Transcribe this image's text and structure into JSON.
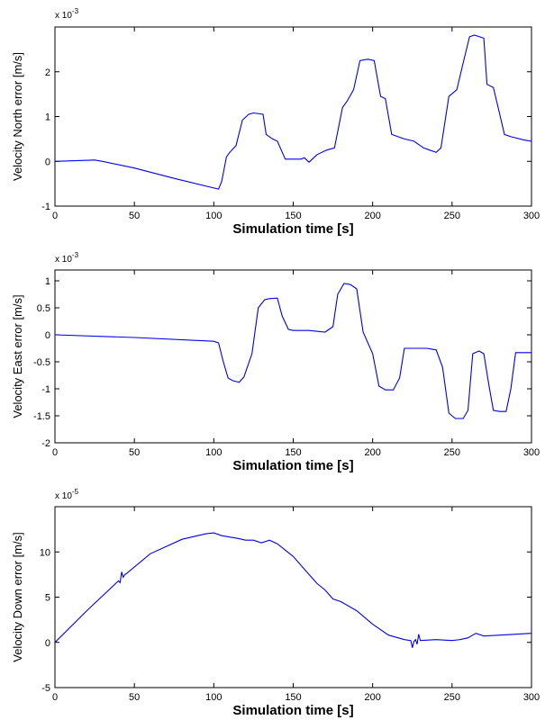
{
  "chart_data": [
    {
      "type": "line",
      "title": "",
      "xlabel": "Simulation time [s]",
      "ylabel": "Velocity North error [m/s]",
      "exponent": {
        "base": "x 10",
        "power": "-3"
      },
      "xlim": [
        0,
        300
      ],
      "ylim": [
        -1,
        3
      ],
      "xticks": [
        0,
        50,
        100,
        150,
        200,
        250,
        300
      ],
      "yticks": [
        -1,
        0,
        1,
        2
      ],
      "grid": false,
      "series": [
        {
          "color": "#0000ee",
          "x": [
            0,
            25,
            30,
            50,
            75,
            103,
            105,
            108,
            110,
            114,
            118,
            122,
            125,
            131,
            133,
            137,
            140,
            145,
            149,
            155,
            157,
            160,
            165,
            171,
            176,
            181,
            184,
            188,
            192,
            197,
            201,
            205,
            208,
            212,
            216,
            220,
            226,
            232,
            236,
            240,
            243,
            248,
            253,
            257,
            261,
            264,
            270,
            272,
            276,
            279,
            283,
            287,
            295,
            300
          ],
          "y": [
            0,
            0.03,
            0,
            -0.15,
            -0.38,
            -0.62,
            -0.45,
            0.1,
            0.2,
            0.35,
            0.92,
            1.05,
            1.08,
            1.05,
            0.6,
            0.5,
            0.45,
            0.05,
            0.05,
            0.05,
            0.08,
            -0.02,
            0.15,
            0.25,
            0.3,
            1.2,
            1.35,
            1.6,
            2.25,
            2.28,
            2.25,
            1.45,
            1.4,
            0.6,
            0.55,
            0.5,
            0.45,
            0.3,
            0.25,
            0.2,
            0.3,
            1.45,
            1.6,
            2.2,
            2.78,
            2.82,
            2.75,
            1.72,
            1.65,
            1.2,
            0.6,
            0.55,
            0.48,
            0.45
          ]
        }
      ]
    },
    {
      "type": "line",
      "title": "",
      "xlabel": "Simulation time [s]",
      "ylabel": "Velocity East error [m/s]",
      "exponent": {
        "base": "x 10",
        "power": "-3"
      },
      "xlim": [
        0,
        300
      ],
      "ylim": [
        -2,
        1.2
      ],
      "xticks": [
        0,
        50,
        100,
        150,
        200,
        250,
        300
      ],
      "yticks": [
        -2,
        -1.5,
        -1,
        -0.5,
        0,
        0.5,
        1
      ],
      "grid": false,
      "series": [
        {
          "color": "#0000ee",
          "x": [
            0,
            50,
            100,
            103,
            106,
            109,
            112,
            116,
            119,
            124,
            128,
            132,
            135,
            140,
            143,
            147,
            150,
            160,
            170,
            175,
            178,
            182,
            186,
            190,
            194,
            200,
            204,
            208,
            213,
            217,
            220,
            230,
            234,
            240,
            244,
            248,
            252,
            255,
            257,
            260,
            263,
            267,
            270,
            273,
            276,
            280,
            284,
            287,
            290,
            300
          ],
          "y": [
            0,
            -0.05,
            -0.12,
            -0.15,
            -0.5,
            -0.8,
            -0.85,
            -0.88,
            -0.78,
            -0.35,
            0.5,
            0.65,
            0.67,
            0.68,
            0.35,
            0.1,
            0.08,
            0.08,
            0.05,
            0.15,
            0.75,
            0.95,
            0.93,
            0.85,
            0.05,
            -0.35,
            -0.95,
            -1.02,
            -1.02,
            -0.8,
            -0.25,
            -0.25,
            -0.25,
            -0.28,
            -0.6,
            -1.45,
            -1.55,
            -1.55,
            -1.55,
            -1.4,
            -0.35,
            -0.3,
            -0.35,
            -0.9,
            -1.4,
            -1.42,
            -1.42,
            -1.0,
            -0.33,
            -0.33
          ]
        }
      ]
    },
    {
      "type": "line",
      "title": "",
      "xlabel": "Simulation time [s]",
      "ylabel": "Velocity Down error [m/s]",
      "exponent": {
        "base": "x 10",
        "power": "-5"
      },
      "xlim": [
        0,
        300
      ],
      "ylim": [
        -5,
        15
      ],
      "xticks": [
        0,
        50,
        100,
        150,
        200,
        250,
        300
      ],
      "yticks": [
        -5,
        0,
        5,
        10
      ],
      "grid": false,
      "series": [
        {
          "color": "#0000ee",
          "x": [
            0,
            20,
            40,
            41,
            42,
            43,
            44,
            45,
            60,
            80,
            95,
            100,
            105,
            115,
            120,
            125,
            130,
            135,
            140,
            150,
            160,
            165,
            170,
            175,
            180,
            190,
            200,
            210,
            220,
            224,
            225,
            226,
            227,
            228,
            229,
            230,
            240,
            250,
            255,
            260,
            265,
            270,
            280,
            290,
            300
          ],
          "y": [
            0,
            3.5,
            6.8,
            6.6,
            7.8,
            7.2,
            7.5,
            7.6,
            9.8,
            11.4,
            12,
            12.1,
            11.8,
            11.5,
            11.3,
            11.3,
            11,
            11.3,
            10.9,
            9.5,
            7.5,
            6.5,
            5.8,
            4.8,
            4.5,
            3.5,
            2,
            0.8,
            0.3,
            0.2,
            -0.6,
            0.1,
            0.3,
            -0.2,
            0.9,
            0.2,
            0.3,
            0.2,
            0.3,
            0.5,
            1,
            0.7,
            0.8,
            0.9,
            1
          ]
        }
      ]
    }
  ]
}
